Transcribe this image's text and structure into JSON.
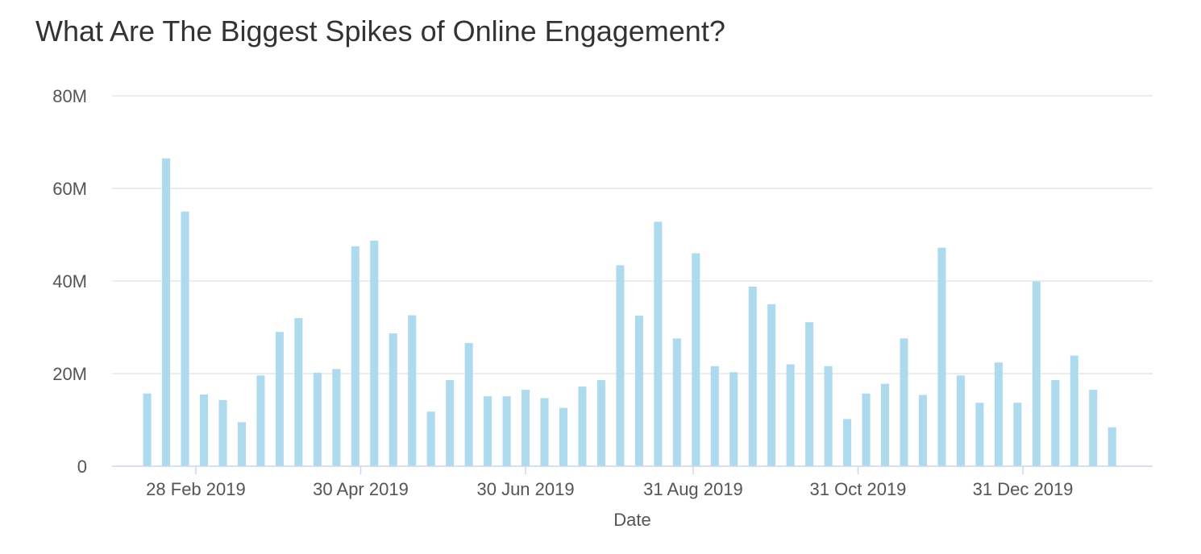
{
  "chart_data": {
    "type": "bar",
    "title": "What Are The Biggest Spikes of Online Engagement?",
    "xlabel": "Date",
    "ylabel": "",
    "ylim": [
      0,
      80000000
    ],
    "y_ticks": [
      {
        "value": 0,
        "label": "0"
      },
      {
        "value": 20000000,
        "label": "20M"
      },
      {
        "value": 40000000,
        "label": "40M"
      },
      {
        "value": 60000000,
        "label": "60M"
      },
      {
        "value": 80000000,
        "label": "80M"
      }
    ],
    "x_ticks": [
      {
        "date": "2019-02-28",
        "label": "28 Feb 2019"
      },
      {
        "date": "2019-04-30",
        "label": "30 Apr 2019"
      },
      {
        "date": "2019-06-30",
        "label": "30 Jun 2019"
      },
      {
        "date": "2019-08-31",
        "label": "31 Aug 2019"
      },
      {
        "date": "2019-10-31",
        "label": "31 Oct 2019"
      },
      {
        "date": "2019-12-31",
        "label": "31 Dec 2019"
      }
    ],
    "x_range": [
      "2019-01-28",
      "2020-02-17"
    ],
    "grid": true,
    "bar_color": "#acdaee",
    "x": [
      "2019-02-10",
      "2019-02-17",
      "2019-02-24",
      "2019-03-03",
      "2019-03-10",
      "2019-03-17",
      "2019-03-24",
      "2019-03-31",
      "2019-04-07",
      "2019-04-14",
      "2019-04-21",
      "2019-04-28",
      "2019-05-05",
      "2019-05-12",
      "2019-05-19",
      "2019-05-26",
      "2019-06-02",
      "2019-06-09",
      "2019-06-16",
      "2019-06-23",
      "2019-06-30",
      "2019-07-07",
      "2019-07-14",
      "2019-07-21",
      "2019-07-28",
      "2019-08-04",
      "2019-08-11",
      "2019-08-18",
      "2019-08-25",
      "2019-09-01",
      "2019-09-08",
      "2019-09-15",
      "2019-09-22",
      "2019-09-29",
      "2019-10-06",
      "2019-10-13",
      "2019-10-20",
      "2019-10-27",
      "2019-11-03",
      "2019-11-10",
      "2019-11-17",
      "2019-11-24",
      "2019-12-01",
      "2019-12-08",
      "2019-12-15",
      "2019-12-22",
      "2019-12-29",
      "2020-01-05",
      "2020-01-12",
      "2020-01-19",
      "2020-01-26",
      "2020-02-02",
      "2020-02-09"
    ],
    "values": [
      15700000,
      66500000,
      55000000,
      15500000,
      14300000,
      9500000,
      19600000,
      29000000,
      32000000,
      20200000,
      21000000,
      47500000,
      48700000,
      28700000,
      32600000,
      11800000,
      18600000,
      26600000,
      15100000,
      15100000,
      16500000,
      14700000,
      12600000,
      17200000,
      18600000,
      43400000,
      32500000,
      52800000,
      27600000,
      46000000,
      21600000,
      20300000,
      38800000,
      35000000,
      22000000,
      31100000,
      21600000,
      10200000,
      15700000,
      17800000,
      27600000,
      15400000,
      47200000,
      19600000,
      13700000,
      22400000,
      13700000,
      39900000,
      18600000,
      23900000,
      16500000,
      8400000,
      0
    ]
  }
}
